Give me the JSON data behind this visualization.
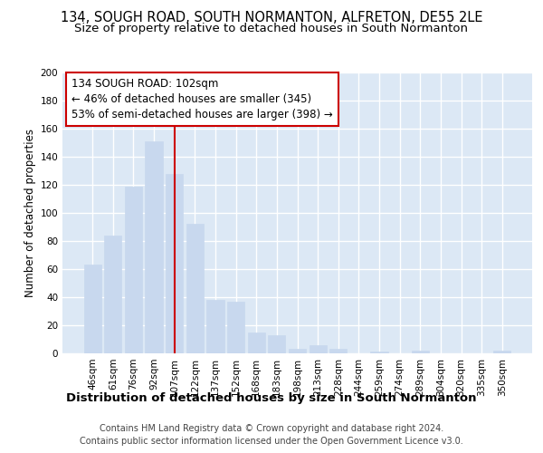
{
  "title1": "134, SOUGH ROAD, SOUTH NORMANTON, ALFRETON, DE55 2LE",
  "title2": "Size of property relative to detached houses in South Normanton",
  "xlabel": "Distribution of detached houses by size in South Normanton",
  "ylabel": "Number of detached properties",
  "footer": "Contains HM Land Registry data © Crown copyright and database right 2024.\nContains public sector information licensed under the Open Government Licence v3.0.",
  "categories": [
    "46sqm",
    "61sqm",
    "76sqm",
    "92sqm",
    "107sqm",
    "122sqm",
    "137sqm",
    "152sqm",
    "168sqm",
    "183sqm",
    "198sqm",
    "213sqm",
    "228sqm",
    "244sqm",
    "259sqm",
    "274sqm",
    "289sqm",
    "304sqm",
    "320sqm",
    "335sqm",
    "350sqm"
  ],
  "values": [
    63,
    84,
    119,
    151,
    128,
    92,
    38,
    37,
    15,
    13,
    3,
    6,
    3,
    0,
    1,
    0,
    2,
    0,
    0,
    0,
    2
  ],
  "bar_color": "#c8d8ee",
  "bar_edge_color": "#c8d8ee",
  "vline_color": "#cc0000",
  "vline_x_index": 4,
  "annotation_text": "134 SOUGH ROAD: 102sqm\n← 46% of detached houses are smaller (345)\n53% of semi-detached houses are larger (398) →",
  "ylim": [
    0,
    200
  ],
  "yticks": [
    0,
    20,
    40,
    60,
    80,
    100,
    120,
    140,
    160,
    180,
    200
  ],
  "plot_bg": "#dce8f5",
  "fig_bg": "#ffffff",
  "grid_color": "#ffffff",
  "title1_fontsize": 10.5,
  "title2_fontsize": 9.5,
  "xlabel_fontsize": 9.5,
  "ylabel_fontsize": 8.5,
  "tick_fontsize": 7.5,
  "footer_fontsize": 7.0,
  "ann_fontsize": 8.5
}
